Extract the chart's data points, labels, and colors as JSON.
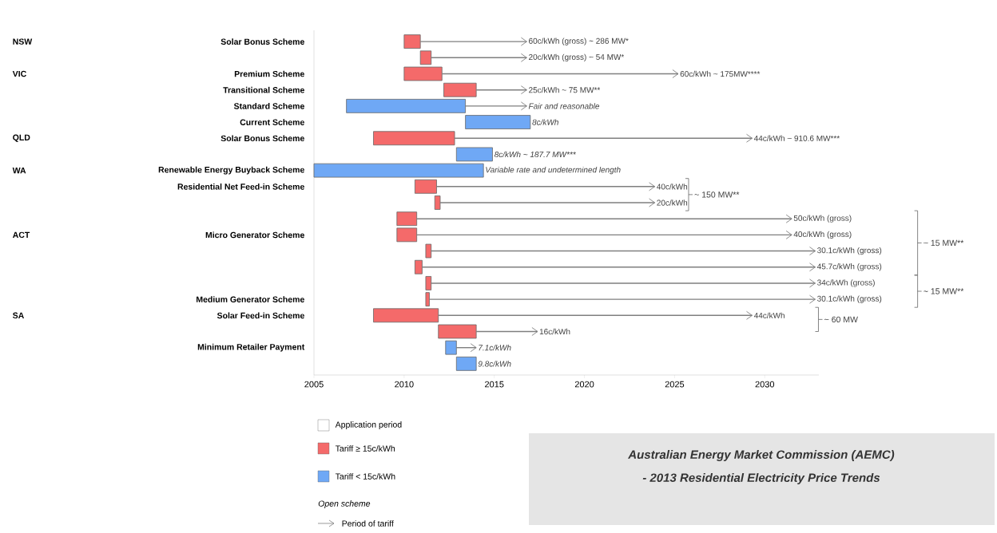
{
  "chart_data": {
    "type": "bar",
    "orientation": "horizontal",
    "legend": "bottom left",
    "categories": [
      "Solar Bonus Scheme",
      null,
      "Premium Scheme",
      "Transitional Scheme",
      "Standard Scheme",
      "Current Scheme",
      "Solar Bonus Scheme",
      null,
      "Renewable Energy Buyback Scheme",
      "Residential Net Feed-in Scheme",
      null,
      null,
      "Micro Generator Scheme",
      null,
      null,
      null,
      "Medium Generator Scheme",
      "Solar Feed-in Scheme",
      null,
      "Minimum Retailer Payment",
      null
    ],
    "xlim": [
      2005,
      2033
    ],
    "xticks": [
      2005,
      2010,
      2015,
      2020,
      2025,
      2030
    ],
    "series": [
      {
        "name": "Tariff ≥ 15c/kWh",
        "color": "#f46a6a",
        "base": [
          2010.0,
          2010.9,
          2010.0,
          2012.2,
          null,
          null,
          2008.3,
          null,
          null,
          2010.6,
          2011.7,
          2009.6,
          2009.6,
          2011.2,
          2010.6,
          2011.2,
          2011.2,
          2008.3,
          2011.9,
          null,
          null
        ],
        "values": [
          0.9,
          0.6,
          2.1,
          1.8,
          null,
          null,
          4.5,
          null,
          null,
          1.2,
          0.3,
          1.1,
          1.1,
          0.3,
          0.4,
          0.3,
          0.2,
          3.6,
          2.1,
          null,
          null
        ]
      },
      {
        "name": "Tariff < 15c/kWh",
        "color": "#6fa8f5",
        "base": [
          null,
          null,
          null,
          null,
          2006.8,
          2013.4,
          null,
          2012.9,
          2005.0,
          null,
          null,
          null,
          null,
          null,
          null,
          null,
          null,
          null,
          null,
          2012.3,
          2012.9
        ],
        "values": [
          null,
          null,
          null,
          null,
          6.6,
          3.6,
          null,
          2.0,
          9.4,
          null,
          null,
          null,
          null,
          null,
          null,
          null,
          null,
          null,
          null,
          0.6,
          1.1
        ]
      },
      {
        "name": "Period of tariff",
        "color": "#7f7f7f",
        "marker": "triangle",
        "base": [
          2010.9,
          2011.5,
          2012.1,
          2014.0,
          2013.4,
          null,
          2012.8,
          null,
          null,
          2011.8,
          2012.0,
          2010.7,
          2010.7,
          2011.5,
          2011.0,
          2011.5,
          2011.4,
          2011.9,
          2014.0,
          2012.9,
          null
        ],
        "values": [
          5.9,
          5.3,
          13.1,
          2.8,
          3.4,
          null,
          16.5,
          null,
          null,
          12.1,
          11.9,
          20.8,
          20.8,
          21.3,
          21.8,
          21.3,
          21.4,
          17.4,
          3.4,
          1.1,
          null
        ]
      }
    ],
    "annotations": [
      "NSW",
      "VIC",
      "QLD",
      "WA",
      "ACT",
      "SA",
      "~ 150 MW**",
      "~ 15 MW**",
      "~ 15 MW**",
      "~ 60 MW",
      "Application period",
      "Open scheme",
      "Australian Energy Market Commission (AEMC)",
      "- 2013 Residential Electricity Price Trends",
      {
        "text": "60c/kWh (gross) ~ 286 MW*",
        "x": 2016.8
      },
      {
        "text": "20c/kWh (gross) ~ 54 MW*",
        "x": 2016.8
      },
      {
        "text": "60c/kWh ~ 175MW****",
        "x": 2025.2
      },
      {
        "text": "25c/kWh ~ 75 MW**",
        "x": 2016.8
      },
      {
        "text": "Fair and reasonable",
        "x": 2016.8
      },
      {
        "text": "8c/kWh",
        "x": 2017.0
      },
      {
        "text": "44c/kWh ~ 910.6 MW***",
        "x": 2029.3
      },
      {
        "text": "8c/kWh ~ 187.7 MW***",
        "x": 2014.9
      },
      {
        "text": "Variable rate and undetermined length",
        "x": 2014.4
      },
      {
        "text": "40c/kWh",
        "x": 2023.9
      },
      {
        "text": "20c/kWh",
        "x": 2023.9
      },
      {
        "text": "50c/kWh (gross)",
        "x": 2031.5
      },
      {
        "text": "40c/kWh (gross)",
        "x": 2031.5
      },
      {
        "text": "30.1c/kWh (gross)",
        "x": 2032.8
      },
      {
        "text": "45.7c/kWh (gross)",
        "x": 2032.8
      },
      {
        "text": "34c/kWh (gross)",
        "x": 2032.8
      },
      {
        "text": "30.1c/kWh (gross)",
        "x": 2032.8
      },
      {
        "text": "44c/kWh",
        "x": 2029.3
      },
      {
        "text": "16c/kWh",
        "x": 2017.4
      },
      {
        "text": "7.1c/kWh",
        "x": 2014.0
      },
      {
        "text": "9.8c/kWh",
        "x": 2014.0
      }
    ]
  }
}
